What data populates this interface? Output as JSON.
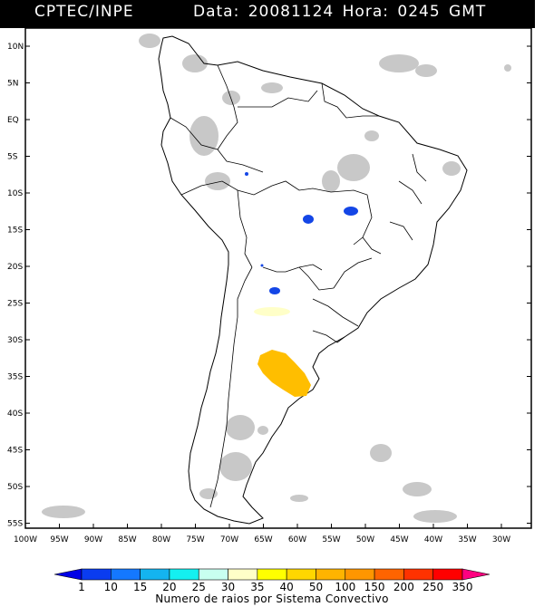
{
  "header": {
    "left_title": "CPTEC/INPE",
    "right_title": "Data: 20081124 Hora: 0245 GMT"
  },
  "map": {
    "lat_labels": [
      "10N",
      "5N",
      "EQ",
      "5S",
      "10S",
      "15S",
      "20S",
      "25S",
      "30S",
      "35S",
      "40S",
      "45S",
      "50S",
      "55S"
    ],
    "lon_labels": [
      "100W",
      "95W",
      "90W",
      "85W",
      "80W",
      "75W",
      "70W",
      "65W",
      "60W",
      "55W",
      "50W",
      "45W",
      "40W",
      "35W",
      "30W"
    ]
  },
  "legend": {
    "values": [
      "1",
      "10",
      "15",
      "20",
      "25",
      "30",
      "35",
      "40",
      "50",
      "100",
      "150",
      "200",
      "250",
      "350"
    ],
    "colors": [
      "#0000e6",
      "#0a3cf0",
      "#1478ff",
      "#14b4f0",
      "#14f0f0",
      "#c8fff0",
      "#ffffc8",
      "#ffff00",
      "#ffd700",
      "#ffb400",
      "#ff9600",
      "#ff6400",
      "#ff3200",
      "#ff0000",
      "#ff0080"
    ],
    "title": "Numero de raios por Sistema Convectivo"
  },
  "storm_colors": {
    "blue": "#1446e6",
    "pale_yellow": "#ffffc8",
    "orange_yellow": "#ffbe00",
    "cloud": "#c8c8c8"
  }
}
